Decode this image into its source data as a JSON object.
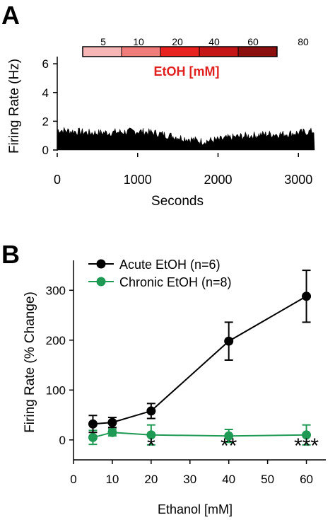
{
  "panels": {
    "a_label": "A",
    "b_label": "B"
  },
  "colors": {
    "acute": "#000000",
    "chronic": "#1f9a54",
    "etoh_label": "#e0201f",
    "etoh_bar_segments": [
      "#f6b6b6",
      "#f07c7c",
      "#e8221f",
      "#c41616",
      "#8c0f0f"
    ]
  },
  "chart_data": [
    {
      "id": "A",
      "type": "area",
      "xlabel": "Seconds",
      "ylabel": "Firing Rate (Hz)",
      "xlim": [
        0,
        3200
      ],
      "ylim": [
        0,
        6.5
      ],
      "x_ticks": [
        0,
        1000,
        2000,
        3000
      ],
      "y_ticks": [
        0,
        2,
        4,
        6
      ],
      "grid": false,
      "profile_x": [
        0,
        200,
        400,
        600,
        800,
        1000,
        1200,
        1400,
        1600,
        1800,
        2000,
        2200,
        2400,
        2600,
        2800,
        3000,
        3200
      ],
      "profile_y": [
        1.4,
        1.3,
        1.2,
        1.2,
        1.25,
        1.3,
        1.2,
        1.0,
        0.8,
        0.6,
        0.7,
        0.9,
        1.0,
        1.1,
        1.1,
        1.2,
        1.3
      ],
      "etoh_bar": {
        "title": "EtOH [mM]",
        "labels": [
          "5",
          "10",
          "20",
          "40",
          "60",
          "80"
        ]
      }
    },
    {
      "id": "B",
      "type": "line",
      "xlabel": "Ethanol [mM]",
      "ylabel": "Firing Rate (% Change)",
      "xlim": [
        0,
        65
      ],
      "ylim": [
        -40,
        360
      ],
      "x_ticks": [
        0,
        10,
        20,
        30,
        40,
        50,
        60
      ],
      "y_ticks": [
        0,
        100,
        200,
        300
      ],
      "grid": false,
      "legend_placement": "top-left",
      "series": [
        {
          "name": "Acute EtOH (n=6)",
          "x": [
            5,
            10,
            20,
            40,
            60
          ],
          "y": [
            32,
            35,
            58,
            198,
            288
          ],
          "err": [
            17,
            10,
            15,
            38,
            52
          ]
        },
        {
          "name": "Chronic EtOH (n=8)",
          "x": [
            5,
            10,
            20,
            40,
            60
          ],
          "y": [
            5,
            15,
            10,
            8,
            10
          ],
          "err": [
            14,
            7,
            20,
            13,
            20
          ]
        }
      ],
      "annotations": [
        {
          "x": 20,
          "text": "*"
        },
        {
          "x": 40,
          "text": "**"
        },
        {
          "x": 60,
          "text": "***"
        }
      ]
    }
  ]
}
